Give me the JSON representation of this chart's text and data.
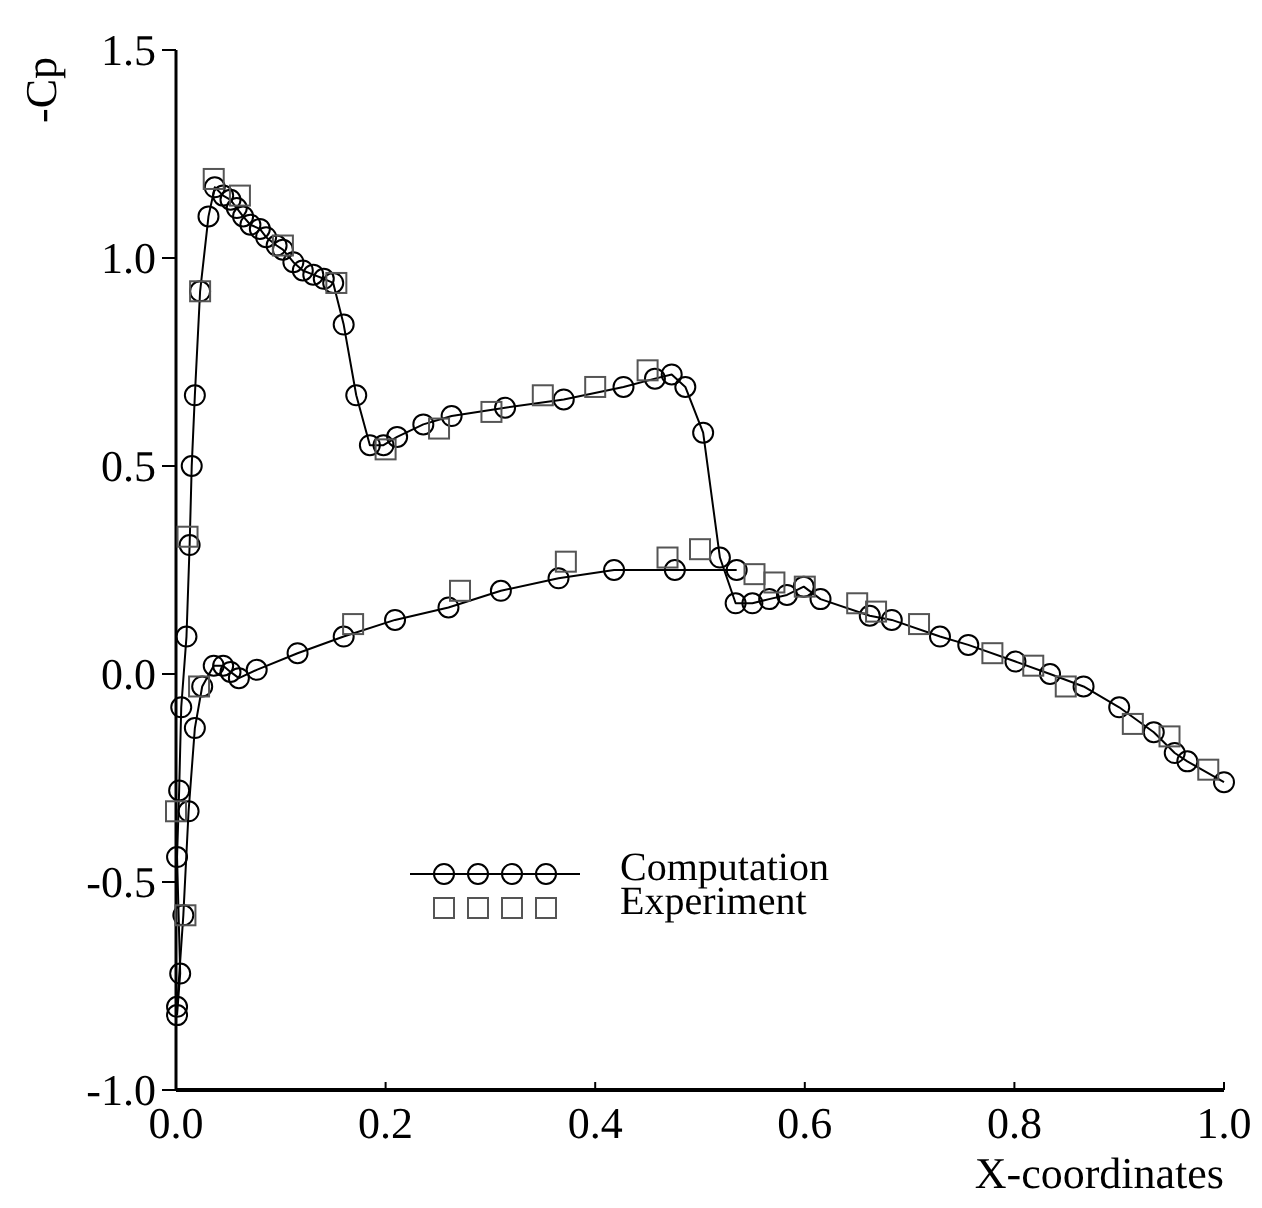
{
  "chart_data": {
    "type": "line",
    "xlabel": "X-coordinates",
    "ylabel": "-Cp",
    "xlim": [
      0,
      1
    ],
    "ylim": [
      -1,
      1.5
    ],
    "xticks": [
      {
        "value": 0,
        "label": "0.0"
      },
      {
        "value": 0.2,
        "label": "0.2"
      },
      {
        "value": 0.4,
        "label": "0.4"
      },
      {
        "value": 0.6,
        "label": "0.6"
      },
      {
        "value": 0.8,
        "label": "0.8"
      },
      {
        "value": 1,
        "label": "1.0"
      }
    ],
    "yticks": [
      {
        "value": -1,
        "label": "-1.0"
      },
      {
        "value": -0.5,
        "label": "-0.5"
      },
      {
        "value": 0,
        "label": "0.0"
      },
      {
        "value": 0.5,
        "label": "0.5"
      },
      {
        "value": 1,
        "label": "1.0"
      },
      {
        "value": 1.5,
        "label": "1.5"
      }
    ],
    "grid": false,
    "legend": "bottom left",
    "series": [
      {
        "name": "Computation",
        "marker": "circle",
        "line_style": "solid",
        "color": "#000000",
        "x": [
          0.001,
          0.004,
          0.001,
          0.003,
          0.005,
          0.01,
          0.013,
          0.015,
          0.018,
          0.023,
          0.031,
          0.037,
          0.045,
          0.052,
          0.058,
          0.064,
          0.071,
          0.08,
          0.086,
          0.096,
          0.102,
          0.112,
          0.121,
          0.131,
          0.141,
          0.15,
          0.16,
          0.172,
          0.185,
          0.198,
          0.211,
          0.236,
          0.263,
          0.314,
          0.37,
          0.427,
          0.457,
          0.473,
          0.486,
          0.503,
          0.519,
          0.534,
          0.55,
          0.566,
          0.583,
          0.599,
          0.615,
          0.662,
          0.683,
          0.729,
          0.756,
          0.801,
          0.834,
          0.866,
          0.9,
          0.933,
          0.953,
          0.965,
          1.0
        ],
        "values": [
          -0.82,
          -0.72,
          -0.44,
          -0.28,
          -0.08,
          0.09,
          0.31,
          0.5,
          0.67,
          0.92,
          1.1,
          1.17,
          1.15,
          1.14,
          1.12,
          1.1,
          1.08,
          1.07,
          1.05,
          1.03,
          1.02,
          0.99,
          0.97,
          0.96,
          0.95,
          0.94,
          0.84,
          0.67,
          0.55,
          0.55,
          0.57,
          0.6,
          0.62,
          0.64,
          0.66,
          0.69,
          0.71,
          0.72,
          0.69,
          0.58,
          0.28,
          0.17,
          0.17,
          0.18,
          0.19,
          0.21,
          0.18,
          0.14,
          0.13,
          0.09,
          0.07,
          0.03,
          0.0,
          -0.03,
          -0.08,
          -0.14,
          -0.19,
          -0.21,
          -0.26
        ]
      },
      {
        "marker": "circle",
        "line_style": "solid",
        "color": "#000000",
        "x": [
          0.001,
          0.007,
          0.012,
          0.018,
          0.025,
          0.036,
          0.045,
          0.052,
          0.06,
          0.077,
          0.116,
          0.16,
          0.209,
          0.26,
          0.31,
          0.365,
          0.418,
          0.476,
          0.535
        ],
        "values": [
          -0.8,
          -0.58,
          -0.33,
          -0.13,
          -0.03,
          0.02,
          0.02,
          0.005,
          -0.01,
          0.01,
          0.05,
          0.09,
          0.13,
          0.16,
          0.2,
          0.23,
          0.25,
          0.25,
          0.25
        ]
      },
      {
        "name": "Experiment",
        "type": "scatter",
        "marker": "square",
        "color": "#555555",
        "x": [
          0.0,
          0.009,
          0.011,
          0.022,
          0.023,
          0.036,
          0.061,
          0.102,
          0.153,
          0.169,
          0.2,
          0.251,
          0.271,
          0.301,
          0.35,
          0.372,
          0.4,
          0.45,
          0.469,
          0.5,
          0.552,
          0.571,
          0.6,
          0.65,
          0.668,
          0.709,
          0.779,
          0.818,
          0.849,
          0.913,
          0.948,
          0.985
        ],
        "values": [
          -0.33,
          -0.58,
          0.33,
          -0.03,
          0.92,
          1.19,
          1.15,
          1.03,
          0.94,
          0.12,
          0.54,
          0.59,
          0.2,
          0.63,
          0.67,
          0.27,
          0.69,
          0.73,
          0.28,
          0.3,
          0.24,
          0.22,
          0.21,
          0.17,
          0.15,
          0.12,
          0.05,
          0.02,
          -0.03,
          -0.12,
          -0.15,
          -0.23
        ]
      }
    ]
  }
}
